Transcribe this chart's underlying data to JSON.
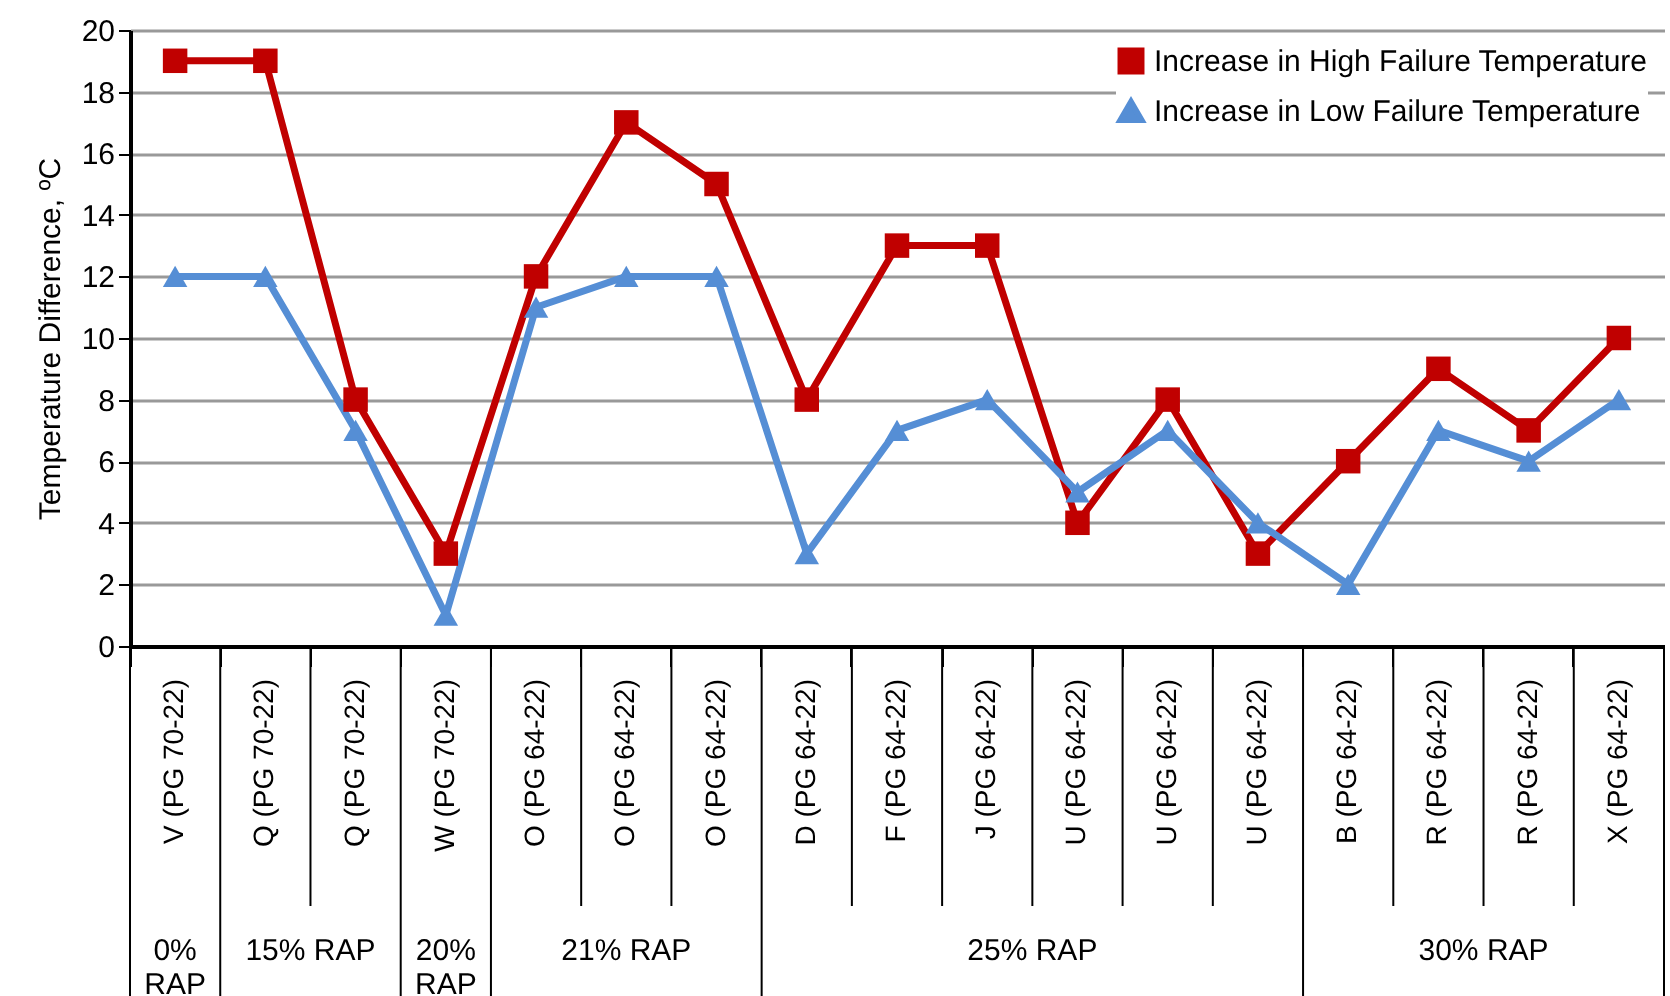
{
  "chart_data": {
    "type": "line",
    "ylabel": "Temperature Difference, ºC",
    "categories": [
      "V (PG 70-22)",
      "Q (PG 70-22)",
      "Q (PG 70-22)",
      "W (PG 70-22)",
      "O (PG 64-22)",
      "O (PG 64-22)",
      "O (PG 64-22)",
      "D (PG 64-22)",
      "F (PG 64-22)",
      "J (PG 64-22)",
      "U (PG 64-22)",
      "U (PG 64-22)",
      "U (PG 64-22)",
      "B (PG 64-22)",
      "R (PG 64-22)",
      "R (PG 64-22)",
      "X (PG 64-22)"
    ],
    "series": [
      {
        "name": "Increase in High Failure Temperature",
        "color": "#c00000",
        "marker": "square",
        "values": [
          19,
          19,
          8,
          3,
          12,
          17,
          15,
          8,
          13,
          13,
          4,
          8,
          3,
          6,
          9,
          7,
          10
        ]
      },
      {
        "name": "Increase in Low Failure Temperature",
        "color": "#558ed5",
        "marker": "triangle",
        "values": [
          12,
          12,
          7,
          1,
          11,
          12,
          12,
          3,
          7,
          8,
          5,
          7,
          4,
          2,
          7,
          6,
          8
        ]
      }
    ],
    "ylim": [
      0,
      20
    ],
    "yticks": [
      0,
      2,
      4,
      6,
      8,
      10,
      12,
      14,
      16,
      18,
      20
    ],
    "grid": "y",
    "legend": "top right",
    "annotations": [
      "0% RAP",
      "15% RAP",
      "20% RAP",
      "21% RAP",
      "25% RAP",
      "30% RAP"
    ]
  }
}
